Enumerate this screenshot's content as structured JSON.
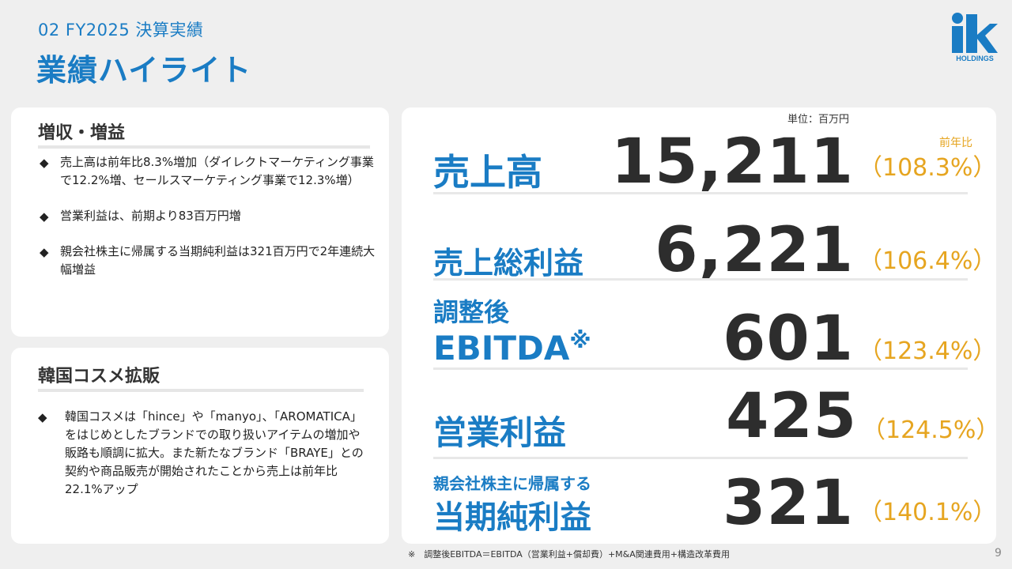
{
  "header": {
    "section": "02  FY2025  決算実績",
    "title": "業績ハイライト"
  },
  "logo": {
    "text": "HOLDINGS",
    "mark": "ik"
  },
  "left_cards": [
    {
      "heading": "増収・増益",
      "bullets": [
        "売上高は前年比8.3%増加（ダイレクトマーケティング事業で12.2%増、セールスマーケティング事業で12.3%増）",
        "営業利益は、前期より83百万円増",
        "親会社株主に帰属する当期純利益は321百万円で2年連続大幅増益"
      ]
    },
    {
      "heading": "韓国コスメ拡販",
      "bullets": [
        "韓国コスメは「hince」や「manyo」、「AROMATICA」をはじめとしたブランドでの取り扱いアイテムの増加や販路も順調に拡大。また新たなブランド「BRAYE」との契約や商品販売が開始されたことから売上は前年比22.1%アップ"
      ]
    }
  ],
  "metrics": {
    "unit": "単位：百万円",
    "yoy_header": "前年比",
    "rows": [
      {
        "label": "売上高",
        "value": "15,211",
        "yoy": "（108.3%）"
      },
      {
        "label": "売上総利益",
        "value": "6,221",
        "yoy": "（106.4%）"
      },
      {
        "label_line1": "調整後",
        "label_line2": "EBITDA",
        "label_mark": "※",
        "value": "601",
        "yoy": "（123.4%）"
      },
      {
        "label": "営業利益",
        "value": "425",
        "yoy": "（124.5%）"
      },
      {
        "label_line1": "親会社株主に帰属する",
        "label_line2": "当期純利益",
        "value": "321",
        "yoy": "（140.1%）"
      }
    ]
  },
  "footnote": "※　調整後EBITDA＝EBITDA（営業利益+償却費）+M&A関連費用+構造改革費用",
  "page_number": "9",
  "colors": {
    "accent": "#1a7cc4",
    "yoy": "#e6a520",
    "value": "#2d2d2d"
  }
}
